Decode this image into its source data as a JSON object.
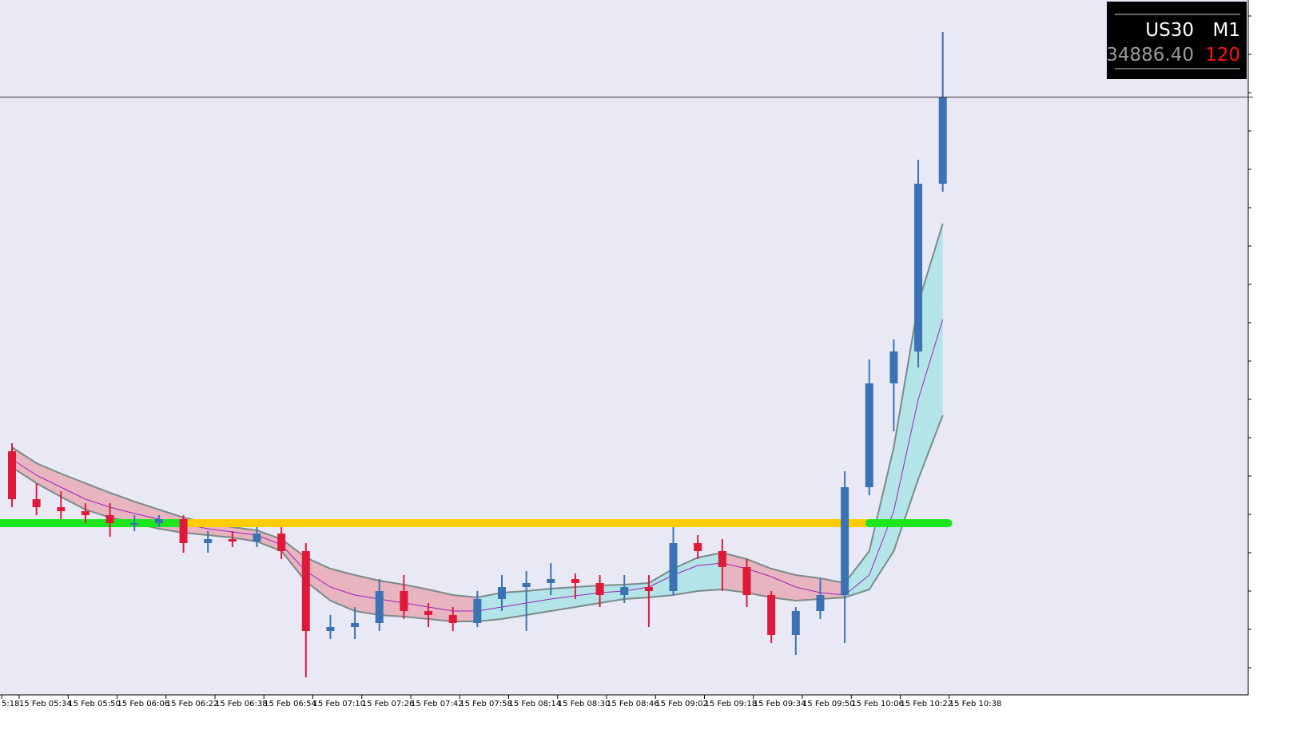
{
  "chart_data": {
    "type": "candlestick",
    "symbol": "US30",
    "timeframe": "M1",
    "bid": "34886.40",
    "spread": "120",
    "ylim": [
      34138,
      35008
    ],
    "price_line": 34886.4,
    "xtick_labels": [
      "5:18",
      "15 Feb 05:34",
      "15 Feb 05:50",
      "15 Feb 06:06",
      "15 Feb 06:22",
      "15 Feb 06:38",
      "15 Feb 06:54",
      "15 Feb 07:10",
      "15 Feb 07:26",
      "15 Feb 07:42",
      "15 Feb 07:58",
      "15 Feb 08:14",
      "15 Feb 08:30",
      "15 Feb 08:46",
      "15 Feb 09:02",
      "15 Feb 09:18",
      "15 Feb 09:34",
      "15 Feb 09:50",
      "15 Feb 10:06",
      "15 Feb 10:22",
      "15 Feb 10:38"
    ],
    "up_color": "#3a72b4",
    "down_color": "#e0193a",
    "ohlc": [
      [
        34443,
        34453,
        34373,
        34383
      ],
      [
        34383,
        34403,
        34363,
        34373
      ],
      [
        34373,
        34393,
        34358,
        34368
      ],
      [
        34368,
        34378,
        34353,
        34363
      ],
      [
        34363,
        34378,
        34336,
        34353
      ],
      [
        34353,
        34363,
        34343,
        34353
      ],
      [
        34353,
        34363,
        34348,
        34358
      ],
      [
        34358,
        34363,
        34316,
        34328
      ],
      [
        34328,
        34343,
        34316,
        34333
      ],
      [
        34333,
        34343,
        34323,
        34330
      ],
      [
        34330,
        34348,
        34323,
        34340
      ],
      [
        34340,
        34348,
        34308,
        34318
      ],
      [
        34318,
        34328,
        34160,
        34218
      ],
      [
        34218,
        34238,
        34208,
        34223
      ],
      [
        34223,
        34248,
        34208,
        34228
      ],
      [
        34228,
        34283,
        34218,
        34268
      ],
      [
        34268,
        34288,
        34233,
        34243
      ],
      [
        34243,
        34253,
        34223,
        34238
      ],
      [
        34238,
        34248,
        34218,
        34228
      ],
      [
        34228,
        34268,
        34223,
        34258
      ],
      [
        34258,
        34288,
        34243,
        34273
      ],
      [
        34273,
        34293,
        34218,
        34278
      ],
      [
        34278,
        34303,
        34263,
        34283
      ],
      [
        34283,
        34290,
        34258,
        34278
      ],
      [
        34278,
        34288,
        34248,
        34263
      ],
      [
        34263,
        34288,
        34253,
        34273
      ],
      [
        34273,
        34288,
        34223,
        34268
      ],
      [
        34268,
        34348,
        34263,
        34328
      ],
      [
        34328,
        34338,
        34308,
        34318
      ],
      [
        34318,
        34333,
        34268,
        34298
      ],
      [
        34298,
        34308,
        34248,
        34263
      ],
      [
        34263,
        34268,
        34203,
        34213
      ],
      [
        34213,
        34248,
        34188,
        34243
      ],
      [
        34243,
        34283,
        34233,
        34263
      ],
      [
        34263,
        34418,
        34203,
        34398
      ],
      [
        34398,
        34558,
        34388,
        34528
      ],
      [
        34528,
        34583,
        34468,
        34568
      ],
      [
        34568,
        34808,
        34548,
        34778
      ],
      [
        34778,
        34968,
        34768,
        34886
      ]
    ],
    "band_upper": [
      34448,
      34428,
      34415,
      34403,
      34391,
      34380,
      34370,
      34360,
      34353,
      34348,
      34344,
      34333,
      34310,
      34296,
      34288,
      34281,
      34276,
      34270,
      34263,
      34260,
      34266,
      34268,
      34271,
      34273,
      34275,
      34276,
      34278,
      34296,
      34310,
      34316,
      34308,
      34296,
      34288,
      34284,
      34278,
      34318,
      34448,
      34628,
      34728
    ],
    "band_mid": [
      34433,
      34413,
      34398,
      34383,
      34373,
      34365,
      34358,
      34352,
      34346,
      34342,
      34338,
      34326,
      34293,
      34273,
      34263,
      34258,
      34253,
      34248,
      34243,
      34243,
      34248,
      34253,
      34258,
      34262,
      34266,
      34268,
      34273,
      34288,
      34300,
      34303,
      34296,
      34286,
      34273,
      34266,
      34263,
      34288,
      34368,
      34508,
      34608
    ],
    "band_lower": [
      34423,
      34403,
      34386,
      34370,
      34360,
      34353,
      34346,
      34341,
      34338,
      34335,
      34330,
      34318,
      34280,
      34256,
      34243,
      34238,
      34236,
      34233,
      34230,
      34230,
      34233,
      34238,
      34243,
      34248,
      34253,
      34258,
      34260,
      34263,
      34268,
      34270,
      34266,
      34260,
      34256,
      34258,
      34260,
      34270,
      34318,
      34408,
      34488
    ],
    "band_down_color": "#e8b4bf",
    "band_up_color": "#b2e4e8",
    "band_line_color": "#7a8a88",
    "mid_color": "#a020c0",
    "level": 34353,
    "level_segments": [
      {
        "from": 0,
        "to": 7,
        "color": "#1ee61e"
      },
      {
        "from": 7,
        "to": 35,
        "color": "#ffcc00"
      },
      {
        "from": 35,
        "to": 38,
        "color": "#1ee61e"
      }
    ]
  }
}
